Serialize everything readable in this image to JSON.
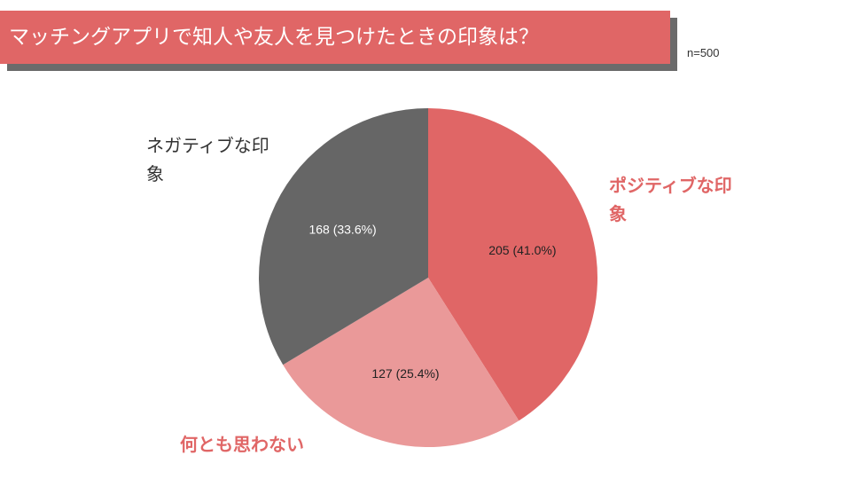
{
  "title": "マッチングアプリで知人や友人を見つけたときの印象は？",
  "sample_size": "n=500",
  "colors": {
    "accent": "#e06666",
    "title_shadow": "#6b6b6b",
    "positive": "#e06666",
    "neutral": "#ea9999",
    "negative": "#666666"
  },
  "labels": {
    "positive": "ポジティブな印象",
    "neutral": "何とも思わない",
    "negative": "ネガティブな印象"
  },
  "chart_data": {
    "type": "pie",
    "title": "マッチングアプリで知人や友人を見つけたときの印象は？",
    "slices": [
      {
        "name": "ポジティブな印象",
        "value": 205,
        "percent": 41.0,
        "label": "205 (41.0%)",
        "color": "#e06666"
      },
      {
        "name": "何とも思わない",
        "value": 127,
        "percent": 25.4,
        "label": "127 (25.4%)",
        "color": "#ea9999"
      },
      {
        "name": "ネガティブな印象",
        "value": 168,
        "percent": 33.6,
        "label": "168 (33.6%)",
        "color": "#666666"
      }
    ],
    "total": 500,
    "start_angle": "12 o'clock",
    "direction": "clockwise"
  }
}
